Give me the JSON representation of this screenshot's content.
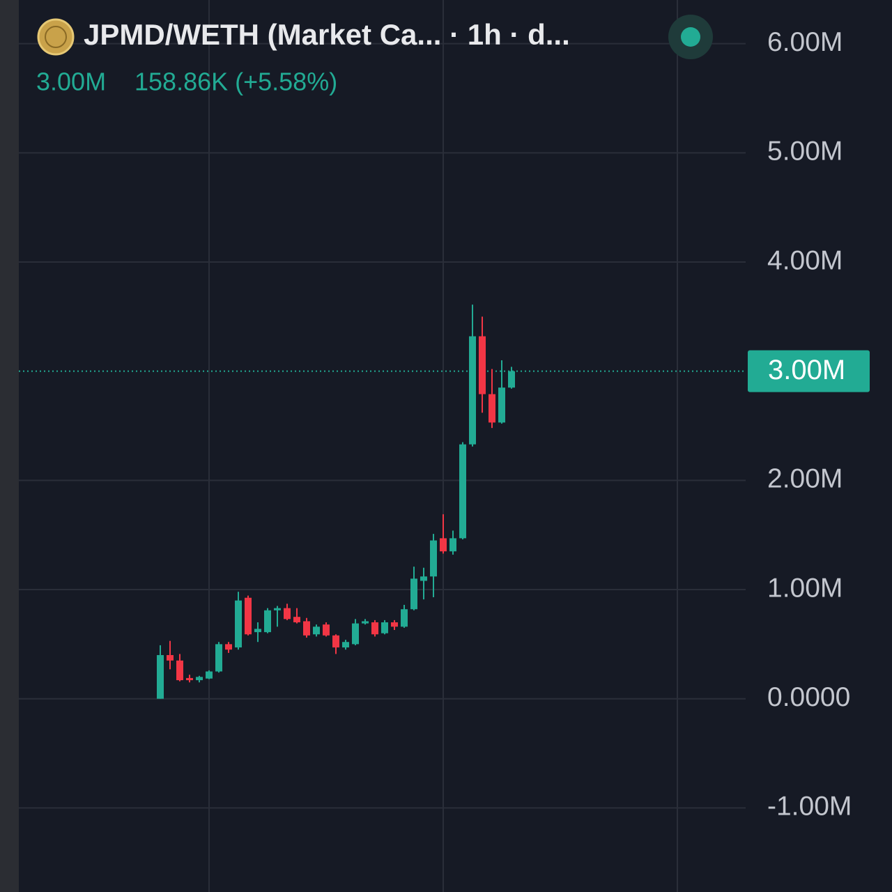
{
  "chart_data": {
    "type": "candlestick",
    "title": "JPMD/WETH (Market Ca... · 1h · d...",
    "last_price": "3.00M",
    "change": "158.86K (+5.58%)",
    "up_color": "#22ab94",
    "down_color": "#f23645",
    "x": [
      0,
      1,
      2,
      3,
      4,
      5,
      6,
      7,
      8,
      9,
      10,
      11,
      12,
      13,
      14,
      15,
      16,
      17,
      18,
      19,
      20,
      21,
      22,
      23,
      24,
      25,
      26,
      27,
      28,
      29,
      30,
      31,
      32,
      33,
      34,
      35,
      36
    ],
    "open": [
      0,
      400000,
      350000,
      190000,
      170000,
      185000,
      250000,
      500000,
      470000,
      925000,
      610000,
      610000,
      810000,
      830000,
      750000,
      710000,
      590000,
      680000,
      580000,
      470000,
      500000,
      690000,
      700000,
      600000,
      700000,
      660000,
      820000,
      1080000,
      1120000,
      1470000,
      1350000,
      1470000,
      2330000,
      3320000,
      2790000,
      2530000,
      2850000
    ],
    "high": [
      490000,
      530000,
      410000,
      220000,
      210000,
      260000,
      520000,
      520000,
      980000,
      945000,
      700000,
      830000,
      850000,
      870000,
      830000,
      740000,
      680000,
      700000,
      590000,
      540000,
      730000,
      730000,
      720000,
      720000,
      720000,
      860000,
      1210000,
      1200000,
      1510000,
      1690000,
      1540000,
      2350000,
      3610000,
      3500000,
      3020000,
      3100000,
      3040000
    ],
    "low": [
      0,
      270000,
      160000,
      150000,
      150000,
      180000,
      240000,
      420000,
      450000,
      580000,
      520000,
      600000,
      660000,
      720000,
      690000,
      560000,
      570000,
      570000,
      410000,
      450000,
      490000,
      680000,
      570000,
      590000,
      630000,
      650000,
      810000,
      910000,
      930000,
      1330000,
      1320000,
      1460000,
      2310000,
      2620000,
      2480000,
      2520000,
      2840000
    ],
    "close": [
      400000,
      350000,
      170000,
      170000,
      200000,
      250000,
      500000,
      450000,
      900000,
      590000,
      640000,
      810000,
      830000,
      730000,
      700000,
      580000,
      660000,
      580000,
      470000,
      520000,
      690000,
      710000,
      590000,
      700000,
      660000,
      820000,
      1100000,
      1120000,
      1450000,
      1350000,
      1470000,
      2330000,
      3320000,
      2790000,
      2530000,
      2850000,
      3000000
    ],
    "xlim": [
      -14.5,
      60
    ],
    "xticks": [
      5,
      29,
      53
    ],
    "ylim": [
      -1770000,
      6400000
    ],
    "yticks": [
      {
        "value": 6000000,
        "label": "6.00M"
      },
      {
        "value": 5000000,
        "label": "5.00M"
      },
      {
        "value": 4000000,
        "label": "4.00M"
      },
      {
        "value": 2000000,
        "label": "2.00M"
      },
      {
        "value": 1000000,
        "label": "1.00M"
      },
      {
        "value": 0,
        "label": "0.0000"
      },
      {
        "value": -1000000,
        "label": "-1.00M"
      }
    ],
    "price_line": {
      "value": 3000000,
      "label": "3.00M"
    },
    "grid": true
  }
}
